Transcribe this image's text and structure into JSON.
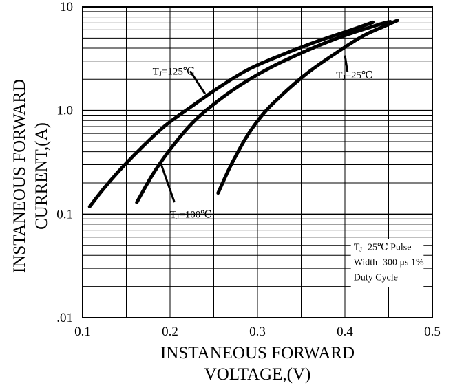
{
  "chart_data": {
    "type": "line",
    "x_scale": "linear",
    "y_scale": "log",
    "xlim": [
      0.1,
      0.5
    ],
    "ylim": [
      0.01,
      10
    ],
    "x_ticks": [
      0.1,
      0.2,
      0.3,
      0.4,
      0.5
    ],
    "x_tick_labels": [
      "0.1",
      "0.2",
      "0.3",
      "0.4",
      "0.5"
    ],
    "y_ticks": [
      0.01,
      0.1,
      1.0,
      10
    ],
    "y_tick_labels": [
      ".01",
      "0.1",
      "1.0",
      "10"
    ],
    "xlabel_lines": [
      "INSTANEOUS FORWARD",
      "VOLTAGE,(V)"
    ],
    "ylabel_lines": [
      "INSTANEOUS FORWARD",
      "CURRENT,(A)"
    ],
    "grid": true,
    "series": [
      {
        "name": "TJ=125℃",
        "x": [
          0.108,
          0.125,
          0.145,
          0.17,
          0.195,
          0.225,
          0.255,
          0.29,
          0.33,
          0.37,
          0.41,
          0.432
        ],
        "y": [
          0.118,
          0.18,
          0.28,
          0.46,
          0.72,
          1.1,
          1.65,
          2.5,
          3.5,
          4.7,
          6.1,
          7.1
        ]
      },
      {
        "name": "TJ=100℃",
        "x": [
          0.162,
          0.18,
          0.2,
          0.225,
          0.25,
          0.28,
          0.315,
          0.36,
          0.4,
          0.44,
          0.452
        ],
        "y": [
          0.13,
          0.24,
          0.42,
          0.75,
          1.15,
          1.75,
          2.6,
          3.9,
          5.3,
          6.8,
          7.2
        ]
      },
      {
        "name": "TJ=25℃",
        "x": [
          0.255,
          0.27,
          0.29,
          0.31,
          0.335,
          0.36,
          0.39,
          0.42,
          0.445,
          0.46
        ],
        "y": [
          0.16,
          0.3,
          0.6,
          1.0,
          1.6,
          2.4,
          3.6,
          5.2,
          6.5,
          7.4
        ]
      }
    ],
    "curve_labels": [
      {
        "text": "TJ=125℃",
        "series": 0,
        "x": 0.18,
        "y": 2.4,
        "ax": 0.223,
        "ay": 2.4,
        "bx": 0.24,
        "by": 1.45
      },
      {
        "text": "TJ=100℃",
        "series": 1,
        "x": 0.2,
        "y": 0.1,
        "ax": 0.205,
        "ay": 0.13,
        "bx": 0.19,
        "by": 0.3
      },
      {
        "text": "TJ=25℃",
        "series": 2,
        "x": 0.39,
        "y": 2.2,
        "ax": 0.403,
        "ay": 2.35,
        "bx": 0.4,
        "by": 3.4
      }
    ],
    "annotation_lines": [
      "TJ=25℃ Pulse",
      "Width=300 μs 1%",
      "Duty Cycle"
    ]
  }
}
